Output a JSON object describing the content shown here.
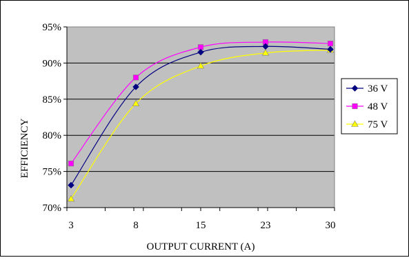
{
  "chart_data": {
    "type": "line",
    "title": "",
    "xlabel": "OUTPUT CURRENT (A)",
    "ylabel": "EFFICIENCY",
    "categories": [
      "3",
      "8",
      "15",
      "23",
      "30"
    ],
    "ylim": [
      70,
      95
    ],
    "yticks": [
      70,
      75,
      80,
      85,
      90,
      95
    ],
    "ytick_labels": [
      "70%",
      "75%",
      "80%",
      "85%",
      "90%",
      "95%"
    ],
    "grid": "horizontal",
    "legend": "right",
    "plot_background": "#c0c0c0",
    "series": [
      {
        "name": "36 V",
        "values": [
          73.1,
          86.7,
          91.5,
          92.3,
          91.9
        ],
        "color": "#000080",
        "marker": "diamond"
      },
      {
        "name": "48 V",
        "values": [
          76.1,
          88.0,
          92.2,
          92.9,
          92.7
        ],
        "color": "#ff00ff",
        "marker": "square"
      },
      {
        "name": "75 V",
        "values": [
          71.2,
          84.4,
          89.6,
          91.4,
          91.8
        ],
        "color": "#ffff00",
        "marker": "triangle"
      }
    ]
  }
}
